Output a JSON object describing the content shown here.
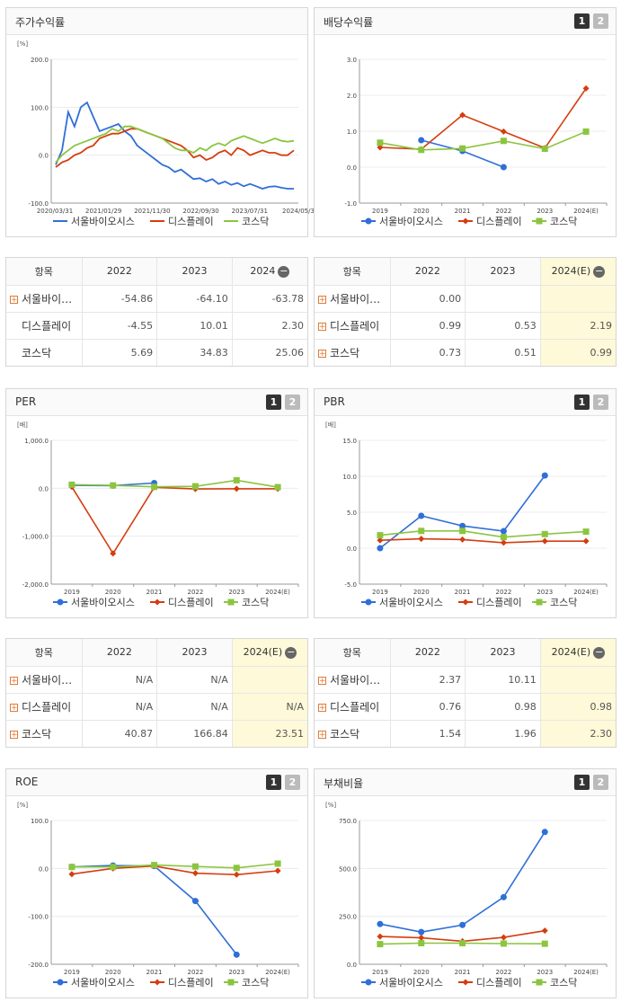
{
  "colors": {
    "series1": "#2f6fd8",
    "series2": "#d43d0f",
    "series3": "#8bc53f"
  },
  "legend": [
    "서울바이오시스",
    "디스플레이",
    "코스닥"
  ],
  "icons": {
    "expand": "plus-icon",
    "collapse": "minus-icon"
  },
  "panels": {
    "stock": {
      "title": "주가수익률"
    },
    "dividend": {
      "title": "배당수익률",
      "btn1": "1",
      "btn2": "2"
    },
    "per": {
      "title": "PER",
      "btn1": "1",
      "btn2": "2"
    },
    "pbr": {
      "title": "PBR",
      "btn1": "1",
      "btn2": "2"
    },
    "roe": {
      "title": "ROE",
      "btn1": "1",
      "btn2": "2"
    },
    "debt": {
      "title": "부채비율",
      "btn1": "1",
      "btn2": "2"
    }
  },
  "tables": {
    "stock": {
      "header": [
        "항목",
        "2022",
        "2023",
        "2024"
      ],
      "rows": [
        {
          "label": "서울바이…",
          "expand": true,
          "values": [
            "-54.86",
            "-64.10",
            "-63.78"
          ]
        },
        {
          "label": "디스플레이",
          "expand": false,
          "values": [
            "-4.55",
            "10.01",
            "2.30"
          ]
        },
        {
          "label": "코스닥",
          "expand": false,
          "values": [
            "5.69",
            "34.83",
            "25.06"
          ]
        }
      ]
    },
    "dividend": {
      "header": [
        "항목",
        "2022",
        "2023",
        "2024(E)"
      ],
      "rows": [
        {
          "label": "서울바이…",
          "expand": true,
          "values": [
            "0.00",
            "",
            ""
          ]
        },
        {
          "label": "디스플레이",
          "expand": true,
          "values": [
            "0.99",
            "0.53",
            "2.19"
          ]
        },
        {
          "label": "코스닥",
          "expand": true,
          "values": [
            "0.73",
            "0.51",
            "0.99"
          ]
        }
      ]
    },
    "per": {
      "header": [
        "항목",
        "2022",
        "2023",
        "2024(E)"
      ],
      "rows": [
        {
          "label": "서울바이…",
          "expand": true,
          "values": [
            "N/A",
            "N/A",
            ""
          ]
        },
        {
          "label": "디스플레이",
          "expand": true,
          "values": [
            "N/A",
            "N/A",
            "N/A"
          ]
        },
        {
          "label": "코스닥",
          "expand": true,
          "values": [
            "40.87",
            "166.84",
            "23.51"
          ]
        }
      ]
    },
    "pbr": {
      "header": [
        "항목",
        "2022",
        "2023",
        "2024(E)"
      ],
      "rows": [
        {
          "label": "서울바이…",
          "expand": true,
          "values": [
            "2.37",
            "10.11",
            ""
          ]
        },
        {
          "label": "디스플레이",
          "expand": true,
          "values": [
            "0.76",
            "0.98",
            "0.98"
          ]
        },
        {
          "label": "코스닥",
          "expand": true,
          "values": [
            "1.54",
            "1.96",
            "2.30"
          ]
        }
      ]
    }
  },
  "chart_data": [
    {
      "id": "stock",
      "type": "line",
      "title": "주가수익률",
      "unit": "[%]",
      "x_ticks": [
        "2020/03/31",
        "2021/01/29",
        "2021/11/30",
        "2022/09/30",
        "2023/07/31",
        "2024/05/3"
      ],
      "ylim": [
        -100,
        200
      ],
      "y_ticks": [
        "200.0",
        "100.0",
        "0.0",
        "-100.0"
      ],
      "series": [
        {
          "name": "서울바이오시스",
          "values": [
            -20,
            10,
            90,
            60,
            100,
            110,
            80,
            50,
            55,
            60,
            65,
            50,
            40,
            20,
            10,
            0,
            -10,
            -20,
            -25,
            -35,
            -30,
            -40,
            -50,
            -48,
            -55,
            -50,
            -60,
            -55,
            -62,
            -58,
            -65,
            -60,
            -65,
            -70,
            -66,
            -65,
            -68,
            -70,
            -70
          ]
        },
        {
          "name": "디스플레이",
          "values": [
            -25,
            -15,
            -10,
            0,
            5,
            15,
            20,
            35,
            40,
            45,
            45,
            50,
            55,
            55,
            50,
            45,
            40,
            35,
            30,
            25,
            20,
            10,
            -5,
            0,
            -10,
            -5,
            5,
            10,
            0,
            15,
            10,
            0,
            5,
            10,
            5,
            5,
            0,
            0,
            10
          ]
        },
        {
          "name": "코스닥",
          "values": [
            -15,
            0,
            10,
            20,
            25,
            30,
            35,
            40,
            45,
            55,
            50,
            60,
            60,
            55,
            50,
            45,
            40,
            35,
            25,
            15,
            10,
            10,
            5,
            15,
            10,
            20,
            25,
            20,
            30,
            35,
            40,
            35,
            30,
            25,
            30,
            35,
            30,
            28,
            30
          ]
        }
      ]
    },
    {
      "id": "dividend",
      "type": "line",
      "title": "배당수익률",
      "categories": [
        "2019",
        "2020",
        "2021",
        "2022",
        "2023",
        "2024(E)"
      ],
      "ylim": [
        -1,
        3
      ],
      "y_ticks": [
        "3.0",
        "2.0",
        "1.0",
        "0.0",
        "-1.0"
      ],
      "series": [
        {
          "name": "서울바이오시스",
          "values": [
            null,
            0.75,
            0.45,
            0.0,
            null,
            null
          ]
        },
        {
          "name": "디스플레이",
          "values": [
            0.55,
            0.5,
            1.45,
            0.99,
            0.53,
            2.19
          ]
        },
        {
          "name": "코스닥",
          "values": [
            0.68,
            0.48,
            0.52,
            0.73,
            0.51,
            0.99
          ]
        }
      ]
    },
    {
      "id": "per",
      "type": "line",
      "title": "PER",
      "unit": "[배]",
      "categories": [
        "2019",
        "2020",
        "2021",
        "2022",
        "2023",
        "2024(E)"
      ],
      "ylim": [
        -2000,
        1000
      ],
      "y_ticks": [
        "1,000.0",
        "0.0",
        "-1,000.0",
        "-2,000.0"
      ],
      "series": [
        {
          "name": "서울바이오시스",
          "values": [
            60,
            55,
            110,
            null,
            null,
            null
          ]
        },
        {
          "name": "디스플레이",
          "values": [
            30,
            -1360,
            20,
            -15,
            -10,
            -10
          ]
        },
        {
          "name": "코스닥",
          "values": [
            75,
            60,
            30,
            40.87,
            166.84,
            23.51
          ]
        }
      ]
    },
    {
      "id": "pbr",
      "type": "line",
      "title": "PBR",
      "unit": "[배]",
      "categories": [
        "2019",
        "2020",
        "2021",
        "2022",
        "2023",
        "2024(E)"
      ],
      "ylim": [
        -5,
        15
      ],
      "y_ticks": [
        "15.0",
        "10.0",
        "5.0",
        "0.0",
        "-5.0"
      ],
      "series": [
        {
          "name": "서울바이오시스",
          "values": [
            0.0,
            4.5,
            3.1,
            2.37,
            10.11,
            null
          ]
        },
        {
          "name": "디스플레이",
          "values": [
            1.1,
            1.3,
            1.2,
            0.76,
            0.98,
            0.98
          ]
        },
        {
          "name": "코스닥",
          "values": [
            1.8,
            2.4,
            2.4,
            1.54,
            1.96,
            2.3
          ]
        }
      ]
    },
    {
      "id": "roe",
      "type": "line",
      "title": "ROE",
      "unit": "[%]",
      "categories": [
        "2019",
        "2020",
        "2021",
        "2022",
        "2023",
        "2024(E)"
      ],
      "ylim": [
        -200,
        100
      ],
      "y_ticks": [
        "100.0",
        "0.0",
        "-100.0",
        "-200.0"
      ],
      "series": [
        {
          "name": "서울바이오시스",
          "values": [
            3,
            6,
            5,
            -68,
            -180,
            null
          ]
        },
        {
          "name": "디스플레이",
          "values": [
            -12,
            0,
            5,
            -10,
            -13,
            -5
          ]
        },
        {
          "name": "코스닥",
          "values": [
            3,
            3,
            7,
            4,
            1,
            10
          ]
        }
      ]
    },
    {
      "id": "debt",
      "type": "line",
      "title": "부채비율",
      "unit": "[%]",
      "categories": [
        "2019",
        "2020",
        "2021",
        "2022",
        "2023",
        "2024(E)"
      ],
      "ylim": [
        0,
        750
      ],
      "y_ticks": [
        "750.0",
        "500.0",
        "250.0",
        "0.0"
      ],
      "series": [
        {
          "name": "서울바이오시스",
          "values": [
            210,
            168,
            205,
            350,
            690,
            null
          ]
        },
        {
          "name": "디스플레이",
          "values": [
            145,
            138,
            120,
            140,
            175,
            null
          ]
        },
        {
          "name": "코스닥",
          "values": [
            105,
            110,
            110,
            108,
            107,
            null
          ]
        }
      ]
    }
  ]
}
